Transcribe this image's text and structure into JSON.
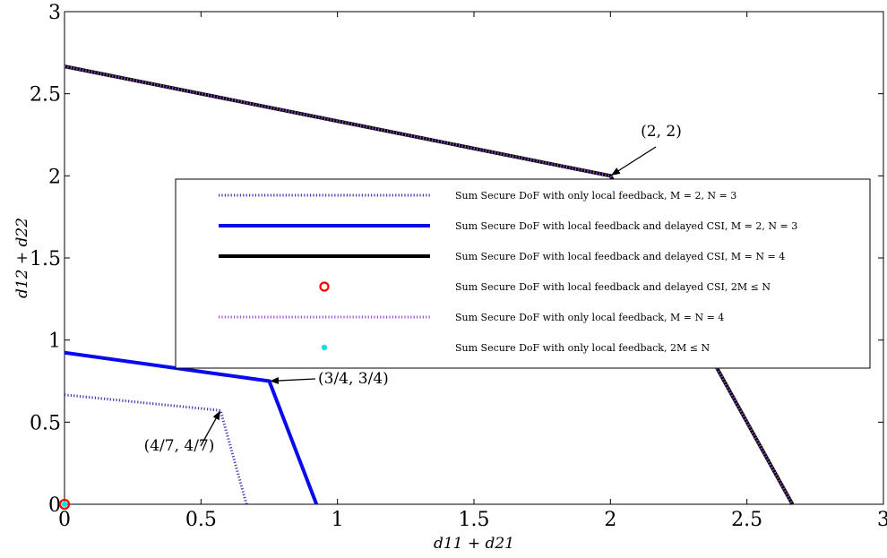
{
  "chart_data": {
    "type": "line",
    "title": "",
    "xlabel": "d11 + d21",
    "ylabel": "d12 + d22",
    "xlim": [
      0,
      3
    ],
    "ylim": [
      0,
      3
    ],
    "x_ticks": [
      "0",
      "0.5",
      "1",
      "1.5",
      "2",
      "2.5",
      "3"
    ],
    "y_ticks": [
      "0",
      "0.5",
      "1",
      "1.5",
      "2",
      "2.5",
      "3"
    ],
    "grid": false,
    "legend_position": "center-right",
    "series": [
      {
        "name": "Sum Secure DoF with only local feedback, M = 2, N = 3",
        "style": "dotted",
        "color": "#3a3ab0",
        "x": [
          0,
          0.5714,
          0.6667
        ],
        "y": [
          0.6667,
          0.5714,
          0
        ]
      },
      {
        "name": "Sum Secure DoF with local feedback and delayed CSI, M = 2, N = 3",
        "style": "solid",
        "color": "#0a0aee",
        "x": [
          0,
          0.75,
          0.9231
        ],
        "y": [
          0.9231,
          0.75,
          0
        ]
      },
      {
        "name": "Sum Secure DoF with local feedback and delayed CSI, M = N = 4",
        "style": "solid",
        "color": "#000000",
        "x": [
          0,
          2,
          2.6667
        ],
        "y": [
          2.6667,
          2,
          0
        ]
      },
      {
        "name": "Sum Secure DoF with local feedback and delayed CSI, 2M ≤ N",
        "style": "marker-circle",
        "color": "#ff0000",
        "x": [
          0
        ],
        "y": [
          0
        ]
      },
      {
        "name": "Sum Secure DoF with only local feedback, M = N = 4",
        "style": "dotted",
        "color": "#9b4fd6",
        "x": [
          0,
          2,
          2.6667
        ],
        "y": [
          2.6667,
          2,
          0
        ]
      },
      {
        "name": "Sum Secure DoF with only local feedback, 2M ≤ N",
        "style": "marker-dot",
        "color": "#00e5e5",
        "x": [
          0
        ],
        "y": [
          0
        ]
      }
    ],
    "annotations": [
      {
        "text": "(2, 2)",
        "x": 2,
        "y": 2
      },
      {
        "text": "(3/4, 3/4)",
        "x": 0.75,
        "y": 0.75
      },
      {
        "text": "(4/7, 4/7)",
        "x": 0.5714,
        "y": 0.5714
      }
    ]
  }
}
